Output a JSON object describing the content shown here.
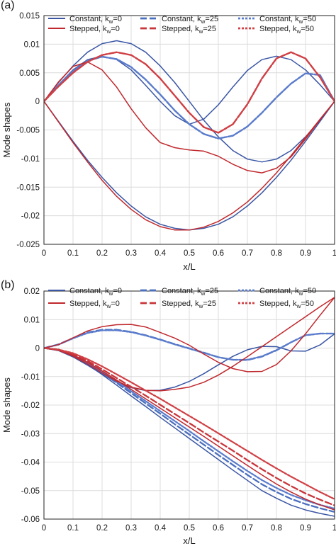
{
  "chart_data": [
    {
      "type": "line",
      "panel_label": "(a)",
      "xlabel": "x/L",
      "ylabel": "Mode shapes",
      "xlim": [
        0,
        1
      ],
      "ylim": [
        -0.025,
        0.015
      ],
      "xticks": [
        "0",
        "0.1",
        "0.2",
        "0.3",
        "0.4",
        "0.5",
        "0.6",
        "0.7",
        "0.8",
        "0.9",
        "1"
      ],
      "yticks": [
        "0.015",
        "0.01",
        "0.005",
        "0",
        "-0.005",
        "-0.01",
        "-0.015",
        "-0.02",
        "-0.025"
      ],
      "grid": true,
      "legend_position": "top",
      "x": [
        0,
        0.05,
        0.1,
        0.15,
        0.2,
        0.25,
        0.3,
        0.35,
        0.4,
        0.45,
        0.5,
        0.55,
        0.6,
        0.65,
        0.7,
        0.75,
        0.8,
        0.85,
        0.9,
        0.95,
        1
      ],
      "series": [
        {
          "name": "Constant, kw=0",
          "legend": [
            "Constant, k",
            "w",
            "=0"
          ],
          "color": "#3a56a5",
          "dash": "solid",
          "values": [
            [
              0,
              0.0033,
              0.0062,
              0.0086,
              0.0101,
              0.0106,
              0.0101,
              0.0086,
              0.0062,
              0.0033,
              0,
              -0.0033,
              -0.0062,
              -0.0086,
              -0.0101,
              -0.0106,
              -0.0101,
              -0.0086,
              -0.0062,
              -0.0033,
              0
            ],
            [
              0,
              -0.0035,
              -0.007,
              -0.0103,
              -0.0133,
              -0.016,
              -0.0183,
              -0.0202,
              -0.0215,
              -0.0222,
              -0.0225,
              -0.0222,
              -0.0215,
              -0.0202,
              -0.0183,
              -0.016,
              -0.0133,
              -0.0103,
              -0.007,
              -0.0035,
              0
            ],
            [
              0,
              0.0029,
              0.0055,
              0.0073,
              0.0079,
              0.0073,
              0.0055,
              0.0028,
              0,
              -0.0025,
              -0.004,
              -0.0031,
              -0.0006,
              0.0025,
              0.0054,
              0.0073,
              0.0079,
              0.0073,
              0.0055,
              0.0029,
              0
            ]
          ]
        },
        {
          "name": "Constant, kw=25",
          "legend": [
            "Constant, k",
            "w",
            "=25"
          ],
          "color": "#4a6fbf",
          "dash": "dash",
          "values": [
            [
              0,
              0.0028,
              0.0053,
              0.0071,
              0.0078,
              0.0074,
              0.006,
              0.0038,
              0.0012,
              -0.0016,
              -0.004,
              -0.0057,
              -0.0065,
              -0.006,
              -0.0044,
              -0.002,
              0.0007,
              0.0031,
              0.0049,
              0.0046,
              0
            ]
          ]
        },
        {
          "name": "Constant, kw=50",
          "legend": [
            "Constant, k",
            "w",
            "=50"
          ],
          "color": "#5b7ccc",
          "dash": "dot",
          "values": [
            [
              0,
              0.0028,
              0.0053,
              0.0071,
              0.0078,
              0.0074,
              0.006,
              0.0038,
              0.0012,
              -0.0016,
              -0.004,
              -0.0057,
              -0.0065,
              -0.006,
              -0.0044,
              -0.002,
              0.0007,
              0.0031,
              0.0049,
              0.0046,
              0
            ]
          ]
        },
        {
          "name": "Stepped, kw=0",
          "legend": [
            "Stepped, k",
            "w",
            "=0"
          ],
          "color": "#c0282d",
          "dash": "solid",
          "values": [
            [
              0,
              0.0034,
              0.0061,
              0.0069,
              0.0055,
              0.0025,
              -0.0013,
              -0.0046,
              -0.0072,
              -0.0081,
              -0.0085,
              -0.0087,
              -0.0096,
              -0.011,
              -0.0121,
              -0.0125,
              -0.0117,
              -0.0097,
              -0.0066,
              -0.0032,
              0
            ],
            [
              0,
              -0.0036,
              -0.0072,
              -0.0106,
              -0.0138,
              -0.0166,
              -0.0189,
              -0.0207,
              -0.0219,
              -0.0225,
              -0.0225,
              -0.022,
              -0.021,
              -0.0195,
              -0.0176,
              -0.0152,
              -0.0125,
              -0.0095,
              -0.0063,
              -0.0031,
              0
            ],
            [
              0,
              0.0026,
              0.005,
              0.0069,
              0.0081,
              0.0086,
              0.0081,
              0.0065,
              0.004,
              0.001,
              -0.002,
              -0.0045,
              -0.0055,
              -0.004,
              -0.0005,
              0.004,
              0.0075,
              0.0086,
              0.0075,
              0.0042,
              0
            ]
          ]
        },
        {
          "name": "Stepped, kw=25",
          "legend": [
            "Stepped, k",
            "w",
            "=25"
          ],
          "color": "#c8353a",
          "dash": "dash",
          "values": [
            [
              0,
              0.0026,
              0.005,
              0.0069,
              0.0081,
              0.0086,
              0.0081,
              0.0065,
              0.004,
              0.001,
              -0.002,
              -0.0045,
              -0.0055,
              -0.004,
              -0.0005,
              0.004,
              0.0075,
              0.0086,
              0.0075,
              0.0042,
              0
            ]
          ]
        },
        {
          "name": "Stepped, kw=50",
          "legend": [
            "Stepped, k",
            "w",
            "=50"
          ],
          "color": "#d04045",
          "dash": "dot",
          "values": [
            [
              0,
              0.0026,
              0.005,
              0.0069,
              0.0081,
              0.0086,
              0.0081,
              0.0065,
              0.004,
              0.001,
              -0.002,
              -0.0045,
              -0.0055,
              -0.004,
              -0.0005,
              0.004,
              0.0075,
              0.0086,
              0.0075,
              0.0042,
              0
            ]
          ]
        }
      ]
    },
    {
      "type": "line",
      "panel_label": "(b)",
      "xlabel": "x/L",
      "ylabel": "Mode shapes",
      "xlim": [
        0,
        1
      ],
      "ylim": [
        -0.06,
        0.02
      ],
      "xticks": [
        "0",
        "0.1",
        "0.2",
        "0.3",
        "0.4",
        "0.5",
        "0.6",
        "0.7",
        "0.8",
        "0.9",
        "1"
      ],
      "yticks": [
        "0.02",
        "0.01",
        "0",
        "-0.01",
        "-0.02",
        "-0.03",
        "-0.04",
        "-0.05",
        "-0.06"
      ],
      "grid": true,
      "legend_position": "top",
      "x": [
        0,
        0.05,
        0.1,
        0.15,
        0.2,
        0.25,
        0.3,
        0.35,
        0.4,
        0.45,
        0.5,
        0.55,
        0.6,
        0.65,
        0.7,
        0.75,
        0.8,
        0.85,
        0.9,
        0.95,
        1
      ],
      "series": [
        {
          "name": "Constant, kw=0",
          "legend": [
            "Constant, k",
            "w",
            "=0"
          ],
          "color": "#3a56a5",
          "dash": "solid",
          "values": [
            [
              0,
              -0.0008,
              -0.0029,
              -0.0058,
              -0.0093,
              -0.013,
              -0.0168,
              -0.0205,
              -0.0243,
              -0.028,
              -0.0317,
              -0.0354,
              -0.0391,
              -0.0428,
              -0.0464,
              -0.05,
              -0.0527,
              -0.0551,
              -0.0568,
              -0.058,
              -0.059
            ],
            [
              0,
              -0.0009,
              -0.0031,
              -0.006,
              -0.0091,
              -0.012,
              -0.0139,
              -0.0149,
              -0.0148,
              -0.0137,
              -0.0117,
              -0.009,
              -0.0059,
              -0.0029,
              -0.0006,
              0.0006,
              0.0005,
              -0.001,
              -0.0011,
              0.0011,
              0.005
            ]
          ]
        },
        {
          "name": "Constant, kw=25",
          "legend": [
            "Constant, k",
            "w",
            "=25"
          ],
          "color": "#4a6fbf",
          "dash": "dash",
          "values": [
            [
              0,
              -0.0007,
              -0.0026,
              -0.0054,
              -0.0087,
              -0.0122,
              -0.0158,
              -0.0194,
              -0.023,
              -0.0267,
              -0.0303,
              -0.0339,
              -0.0375,
              -0.041,
              -0.0445,
              -0.0478,
              -0.0505,
              -0.0529,
              -0.0547,
              -0.0562,
              -0.0575
            ],
            [
              0,
              0.0013,
              0.0035,
              0.0055,
              0.0064,
              0.0064,
              0.0057,
              0.0045,
              0.003,
              0.0014,
              -0.0001,
              -0.0016,
              -0.0032,
              -0.0041,
              -0.0042,
              -0.003,
              -0.0008,
              0.002,
              0.0045,
              0.0051,
              0.0051
            ]
          ]
        },
        {
          "name": "Constant, kw=50",
          "legend": [
            "Constant, k",
            "w",
            "=50"
          ],
          "color": "#5b7ccc",
          "dash": "dot",
          "values": [
            [
              0,
              -0.0006,
              -0.0024,
              -0.0051,
              -0.0082,
              -0.0116,
              -0.0151,
              -0.0186,
              -0.0221,
              -0.0256,
              -0.0291,
              -0.0327,
              -0.0362,
              -0.0397,
              -0.0431,
              -0.0463,
              -0.0491,
              -0.0515,
              -0.0534,
              -0.055,
              -0.0563
            ],
            [
              0,
              0.0012,
              0.0034,
              0.0053,
              0.0062,
              0.0062,
              0.0056,
              0.0044,
              0.0029,
              0.0013,
              -0.0002,
              -0.0017,
              -0.0032,
              -0.0041,
              -0.0041,
              -0.0029,
              -0.0007,
              0.002,
              0.0045,
              0.0051,
              0.0051
            ]
          ]
        },
        {
          "name": "Stepped, kw=0",
          "legend": [
            "Stepped, k",
            "w",
            "=0"
          ],
          "color": "#c0282d",
          "dash": "solid",
          "values": [
            [
              0,
              0.0012,
              0.0036,
              0.006,
              0.0075,
              0.0082,
              0.0083,
              0.0074,
              0.0055,
              0.0035,
              0.001,
              -0.0021,
              -0.005,
              -0.0072,
              -0.0083,
              -0.0082,
              -0.0058,
              -0.001,
              0.005,
              0.0115,
              0.0178
            ],
            [
              0,
              -0.0008,
              -0.0028,
              -0.0056,
              -0.0087,
              -0.0116,
              -0.0137,
              -0.0148,
              -0.015,
              -0.0145,
              -0.0137,
              -0.012,
              -0.0095,
              -0.0064,
              -0.003,
              0.0005,
              0.004,
              0.0075,
              0.011,
              0.0145,
              0.0178
            ],
            [
              0,
              -0.0007,
              -0.0025,
              -0.005,
              -0.008,
              -0.0112,
              -0.0145,
              -0.0178,
              -0.0211,
              -0.0244,
              -0.0277,
              -0.031,
              -0.0344,
              -0.0378,
              -0.0412,
              -0.0445,
              -0.0477,
              -0.0505,
              -0.053,
              -0.055,
              -0.0568
            ]
          ]
        },
        {
          "name": "Stepped, kw=25",
          "legend": [
            "Stepped, k",
            "w",
            "=25"
          ],
          "color": "#c8353a",
          "dash": "dash",
          "values": [
            [
              0,
              -0.0006,
              -0.0022,
              -0.0045,
              -0.0074,
              -0.0105,
              -0.0136,
              -0.0167,
              -0.0199,
              -0.0231,
              -0.0263,
              -0.0296,
              -0.0328,
              -0.036,
              -0.0393,
              -0.0425,
              -0.0456,
              -0.0484,
              -0.051,
              -0.0532,
              -0.0552
            ]
          ]
        },
        {
          "name": "Stepped, kw=50",
          "legend": [
            "Stepped, k",
            "w",
            "=50"
          ],
          "color": "#d04045",
          "dash": "dot",
          "values": [
            [
              0,
              -0.0005,
              -0.0018,
              -0.0039,
              -0.0064,
              -0.0092,
              -0.012,
              -0.0149,
              -0.0178,
              -0.0208,
              -0.0238,
              -0.0268,
              -0.0299,
              -0.033,
              -0.0361,
              -0.0392,
              -0.0422,
              -0.0451,
              -0.0478,
              -0.0505,
              -0.053
            ]
          ]
        }
      ]
    }
  ]
}
